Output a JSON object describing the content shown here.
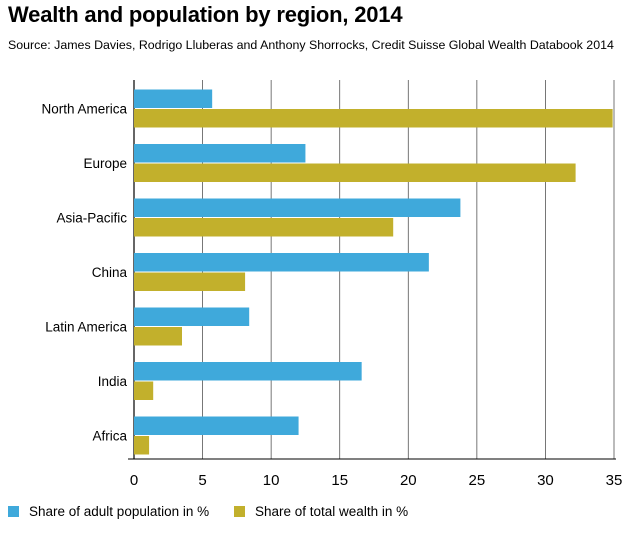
{
  "chart_data": {
    "type": "bar",
    "orientation": "horizontal",
    "title": "Wealth and population by region, 2014",
    "subtitle": "Source: James Davies, Rodrigo Lluberas and Anthony Shorrocks, Credit Suisse Global Wealth Databook 2014",
    "categories": [
      "North America",
      "Europe",
      "Asia-Pacific",
      "China",
      "Latin America",
      "India",
      "Africa"
    ],
    "series": [
      {
        "name": "Share of adult population in %",
        "color": "#3fa9db",
        "values": [
          5.7,
          12.5,
          23.8,
          21.5,
          8.4,
          16.6,
          12.0
        ]
      },
      {
        "name": "Share of total wealth in %",
        "color": "#c2b02c",
        "values": [
          34.9,
          32.2,
          18.9,
          8.1,
          3.5,
          1.4,
          1.1
        ]
      }
    ],
    "xlim": [
      0,
      35
    ],
    "xticks": [
      0,
      5,
      10,
      15,
      20,
      25,
      30,
      35
    ],
    "grid": true,
    "legend": "bottom-left"
  }
}
